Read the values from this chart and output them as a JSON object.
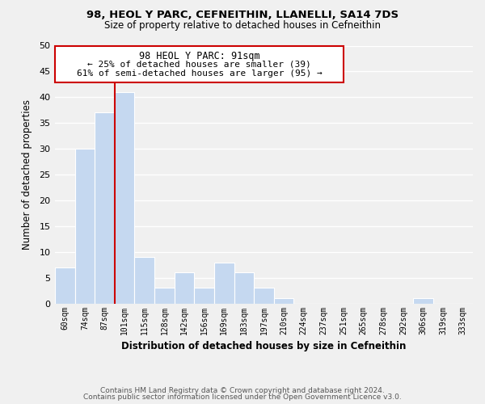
{
  "title": "98, HEOL Y PARC, CEFNEITHIN, LLANELLI, SA14 7DS",
  "subtitle": "Size of property relative to detached houses in Cefneithin",
  "xlabel": "Distribution of detached houses by size in Cefneithin",
  "ylabel": "Number of detached properties",
  "bin_labels": [
    "60sqm",
    "74sqm",
    "87sqm",
    "101sqm",
    "115sqm",
    "128sqm",
    "142sqm",
    "156sqm",
    "169sqm",
    "183sqm",
    "197sqm",
    "210sqm",
    "224sqm",
    "237sqm",
    "251sqm",
    "265sqm",
    "278sqm",
    "292sqm",
    "306sqm",
    "319sqm",
    "333sqm"
  ],
  "bar_heights": [
    7,
    30,
    37,
    41,
    9,
    3,
    6,
    3,
    8,
    6,
    3,
    1,
    0,
    0,
    0,
    0,
    0,
    0,
    1,
    0,
    0
  ],
  "bar_color": "#c5d8f0",
  "bar_edge_color": "#ffffff",
  "vline_x_pos": 3,
  "vline_color": "#cc0000",
  "annotation_title": "98 HEOL Y PARC: 91sqm",
  "annotation_line1": "← 25% of detached houses are smaller (39)",
  "annotation_line2": "61% of semi-detached houses are larger (95) →",
  "annotation_box_color": "#ffffff",
  "annotation_box_edge": "#cc0000",
  "ylim": [
    0,
    50
  ],
  "yticks": [
    0,
    5,
    10,
    15,
    20,
    25,
    30,
    35,
    40,
    45,
    50
  ],
  "footer_line1": "Contains HM Land Registry data © Crown copyright and database right 2024.",
  "footer_line2": "Contains public sector information licensed under the Open Government Licence v3.0.",
  "background_color": "#f0f0f0",
  "plot_bg_color": "#f0f0f0",
  "grid_color": "#ffffff"
}
